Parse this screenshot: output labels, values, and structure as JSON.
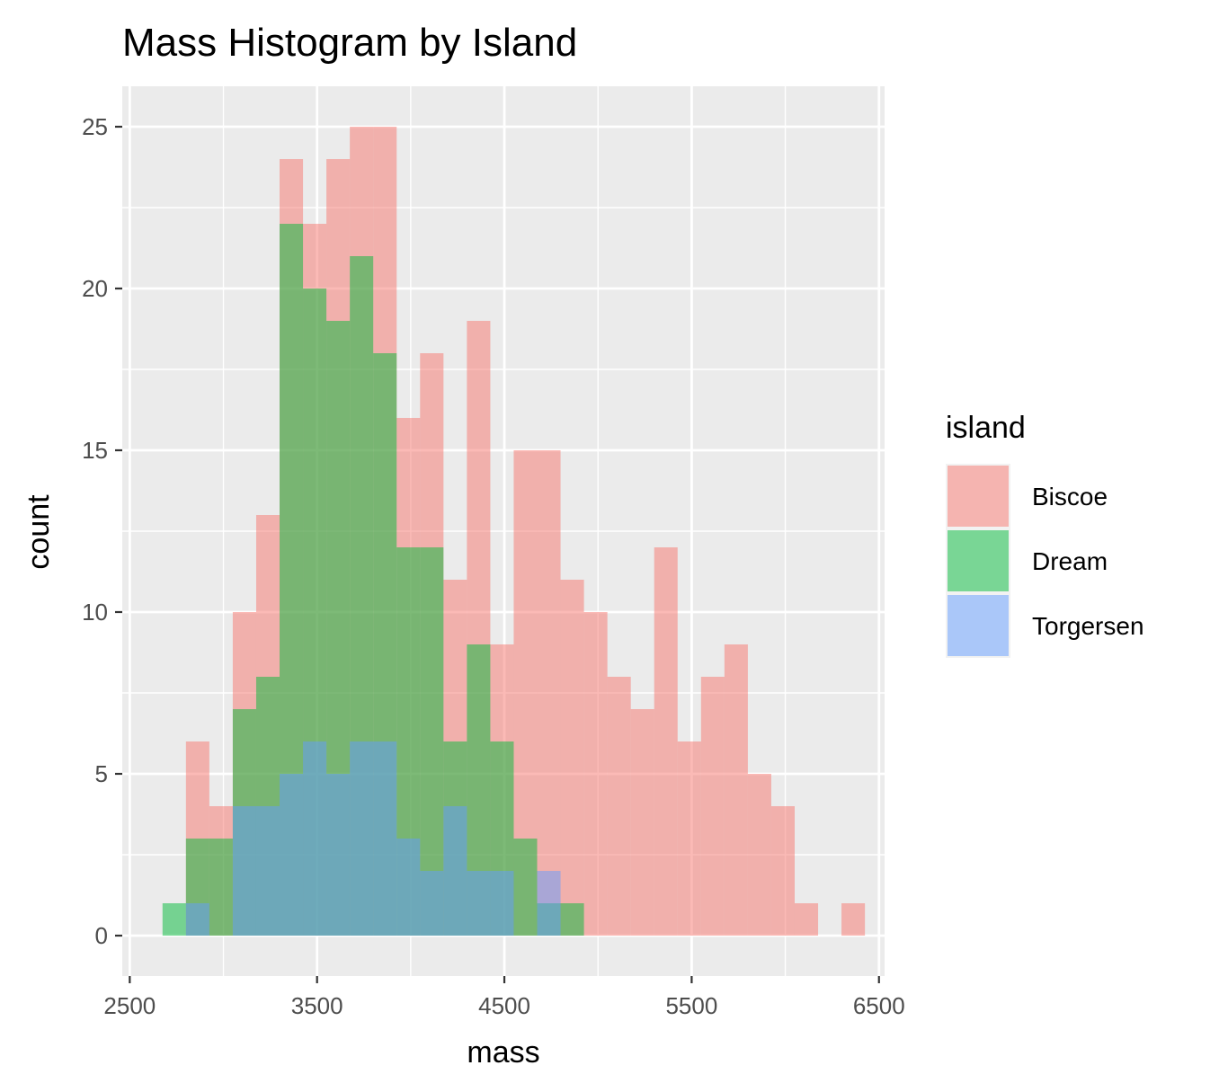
{
  "chart_data": {
    "type": "histogram",
    "title": "Mass Histogram by Island",
    "xlabel": "mass",
    "ylabel": "count",
    "xlim": [
      2500,
      6500
    ],
    "ylim": [
      0,
      25
    ],
    "x_ticks": [
      2500,
      3500,
      4500,
      5500,
      6500
    ],
    "y_ticks": [
      0,
      5,
      10,
      15,
      20,
      25
    ],
    "grid": true,
    "stacked": false,
    "bar_opacity": 0.5,
    "bin_edges": [
      2675,
      2800,
      2925,
      3050,
      3175,
      3300,
      3425,
      3550,
      3675,
      3800,
      3925,
      4050,
      4175,
      4300,
      4425,
      4550,
      4675,
      4800,
      4925,
      5050,
      5175,
      5300,
      5425,
      5550,
      5675,
      5800,
      5925,
      6050,
      6175,
      6300,
      6425
    ],
    "legend": {
      "title": "island",
      "position": "right"
    },
    "series": [
      {
        "name": "Biscoe",
        "color": "#F8766D",
        "values": [
          0,
          6,
          4,
          10,
          13,
          24,
          22,
          24,
          25,
          25,
          16,
          18,
          11,
          19,
          9,
          15,
          15,
          11,
          10,
          8,
          7,
          12,
          6,
          8,
          9,
          5,
          4,
          1,
          0,
          1
        ]
      },
      {
        "name": "Dream",
        "color": "#00BA38",
        "values": [
          1,
          3,
          3,
          7,
          8,
          22,
          20,
          19,
          21,
          18,
          12,
          12,
          6,
          9,
          6,
          3,
          1,
          1,
          0,
          0,
          0,
          0,
          0,
          0,
          0,
          0,
          0,
          0,
          0,
          0
        ]
      },
      {
        "name": "Torgersen",
        "color": "#619CFF",
        "values": [
          0,
          1,
          0,
          4,
          4,
          5,
          6,
          5,
          6,
          6,
          3,
          2,
          4,
          2,
          2,
          0,
          2,
          0,
          0,
          0,
          0,
          0,
          0,
          0,
          0,
          0,
          0,
          0,
          0,
          0
        ]
      }
    ]
  }
}
